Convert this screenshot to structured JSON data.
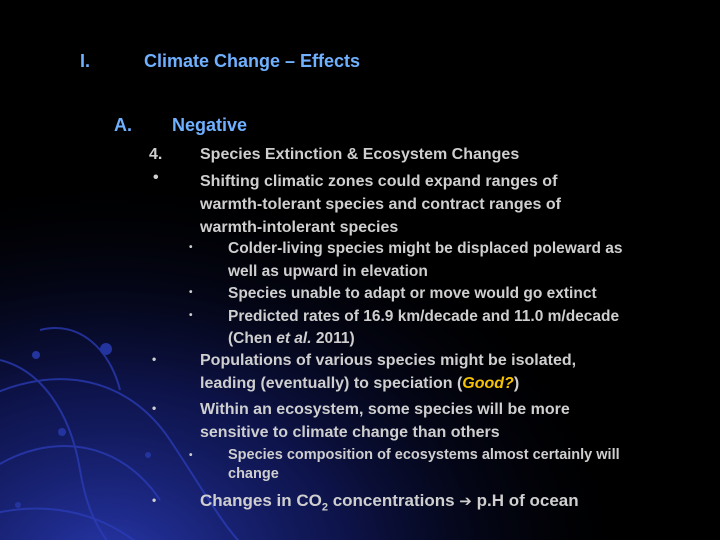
{
  "colors": {
    "background": "#000000",
    "heading": "#6fb0ff",
    "body_text": "#cfcfcf",
    "highlight": "#f5c300",
    "decoration": "#1f2f9a"
  },
  "slide": {
    "section_number": "I.",
    "title": "Climate Change – Effects",
    "sub_marker": "A.",
    "subtitle": "Negative",
    "item4": {
      "marker": "4.",
      "text": "Species Extinction & Ecosystem Changes"
    },
    "bullets": {
      "glyph": "•",
      "shifting": {
        "lines": [
          "Shifting climatic zones could expand ranges of",
          "warmth-tolerant species and contract ranges of",
          "warmth-intolerant species"
        ]
      },
      "sub1": {
        "colder_lines": [
          "Colder-living species might be displaced poleward as",
          "well as upward in elevation"
        ],
        "unable": "Species unable to adapt or move would go extinct",
        "predicted_line1": "Predicted rates of 16.9 km/decade and 11.0 m/decade",
        "predicted_line2_pre": "(Chen ",
        "predicted_line2_em": "et al.",
        "predicted_line2_post": " 2011)"
      },
      "populations": {
        "line1": "Populations of various species might be isolated,",
        "line2_pre": "leading (eventually) to speciation (",
        "line2_good": "Good?",
        "line2_post": ")"
      },
      "within": {
        "lines": [
          "Within an ecosystem, some species will be more",
          "sensitive to climate change than others"
        ]
      },
      "sub2": {
        "composition_lines": [
          "Species composition of ecosystems almost certainly will",
          "change"
        ]
      },
      "co2": {
        "pre": "Changes in CO",
        "sub": "2",
        "mid": " concentrations ",
        "arrow": "➔",
        "post": " p.H of ocean"
      }
    }
  }
}
